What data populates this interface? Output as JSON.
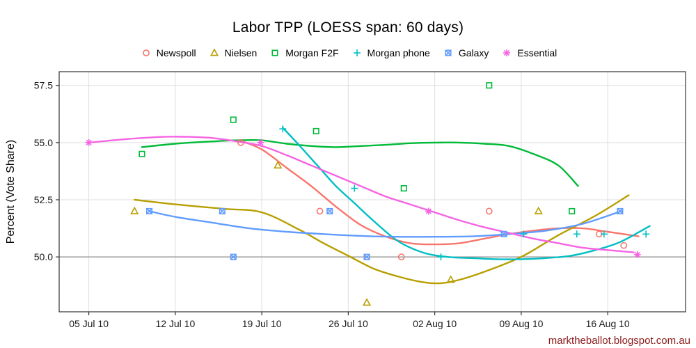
{
  "page": {
    "watermark": "marktheballot.blogspot.com.au"
  },
  "colors": {
    "grid": "#DEDEDE",
    "panel_border": "#333333",
    "panel_background": "#FFFFFF",
    "reference_line": "#8C8C8C",
    "tick_color": "#333333",
    "watermark": "#8B1A1A"
  },
  "chart_data": {
    "type": "scatter",
    "title": "Labor TPP (LOESS span: 60 days)",
    "xlabel": "",
    "ylabel": "Percent (Vote Share)",
    "x_unit_note": "x values are days since 05 Jul 2010",
    "loess_span_days": 60,
    "grid": true,
    "legend_position": "top",
    "xlim": [
      -2.4,
      48.3
    ],
    "ylim": [
      47.6,
      58.1
    ],
    "reference_line_y": 50.0,
    "x_ticks": [
      {
        "value": 0,
        "label": "05 Jul 10"
      },
      {
        "value": 7,
        "label": "12 Jul 10"
      },
      {
        "value": 14,
        "label": "19 Jul 10"
      },
      {
        "value": 21,
        "label": "26 Jul 10"
      },
      {
        "value": 28,
        "label": "02 Aug 10"
      },
      {
        "value": 35,
        "label": "09 Aug 10"
      },
      {
        "value": 42,
        "label": "16 Aug 10"
      }
    ],
    "y_ticks": [
      {
        "value": 50.0,
        "label": "50.0"
      },
      {
        "value": 52.5,
        "label": "52.5"
      },
      {
        "value": 55.0,
        "label": "55.0"
      },
      {
        "value": 57.5,
        "label": "57.5"
      }
    ],
    "series": [
      {
        "name": "Newspoll",
        "color": "#F8766D",
        "shape": "circle-open",
        "points": [
          [
            12.3,
            55.0
          ],
          [
            18.7,
            52.0
          ],
          [
            25.3,
            50.0
          ],
          [
            32.4,
            52.0
          ],
          [
            41.3,
            51.0
          ],
          [
            43.3,
            50.5
          ]
        ],
        "loess": [
          [
            12.2,
            55.1
          ],
          [
            14,
            54.7
          ],
          [
            16,
            53.9
          ],
          [
            18,
            53.1
          ],
          [
            20,
            52.2
          ],
          [
            22,
            51.4
          ],
          [
            24,
            50.9
          ],
          [
            26,
            50.6
          ],
          [
            28,
            50.55
          ],
          [
            30,
            50.6
          ],
          [
            32,
            50.8
          ],
          [
            34,
            51.0
          ],
          [
            36,
            51.15
          ],
          [
            38,
            51.25
          ],
          [
            40,
            51.25
          ],
          [
            42,
            51.1
          ],
          [
            44.5,
            50.9
          ]
        ]
      },
      {
        "name": "Nielsen",
        "color": "#B79F00",
        "shape": "triangle-open",
        "points": [
          [
            3.7,
            52.0
          ],
          [
            15.3,
            54.0
          ],
          [
            22.5,
            48.0
          ],
          [
            29.3,
            49.0
          ],
          [
            36.4,
            52.0
          ]
        ],
        "loess": [
          [
            3.7,
            52.5
          ],
          [
            7,
            52.3
          ],
          [
            11,
            52.1
          ],
          [
            14,
            51.95
          ],
          [
            17,
            51.2
          ],
          [
            19,
            50.6
          ],
          [
            21,
            50.05
          ],
          [
            23,
            49.5
          ],
          [
            25,
            49.15
          ],
          [
            27,
            48.9
          ],
          [
            28.5,
            48.85
          ],
          [
            30,
            49.0
          ],
          [
            32,
            49.35
          ],
          [
            35,
            50.0
          ],
          [
            38,
            50.95
          ],
          [
            41,
            51.8
          ],
          [
            43.7,
            52.7
          ]
        ]
      },
      {
        "name": "Morgan F2F",
        "color": "#00BA38",
        "shape": "square-open",
        "points": [
          [
            4.3,
            54.5
          ],
          [
            11.7,
            56.0
          ],
          [
            18.4,
            55.5
          ],
          [
            25.5,
            53.0
          ],
          [
            32.4,
            57.5
          ],
          [
            39.1,
            52.0
          ]
        ],
        "loess": [
          [
            4.3,
            54.8
          ],
          [
            7,
            54.95
          ],
          [
            10,
            55.05
          ],
          [
            12,
            55.1
          ],
          [
            14,
            55.1
          ],
          [
            16,
            54.95
          ],
          [
            18,
            54.85
          ],
          [
            20,
            54.8
          ],
          [
            22,
            54.85
          ],
          [
            24,
            54.9
          ],
          [
            26,
            54.97
          ],
          [
            28,
            55.0
          ],
          [
            30,
            55.0
          ],
          [
            32,
            54.95
          ],
          [
            34,
            54.85
          ],
          [
            36,
            54.5
          ],
          [
            38,
            54.0
          ],
          [
            39.6,
            53.1
          ]
        ]
      },
      {
        "name": "Morgan phone",
        "color": "#00BFC4",
        "shape": "plus",
        "points": [
          [
            15.7,
            55.6
          ],
          [
            21.5,
            53.0
          ],
          [
            28.5,
            50.0
          ],
          [
            35.2,
            51.0
          ],
          [
            39.5,
            51.0
          ],
          [
            41.7,
            51.0
          ],
          [
            45.1,
            51.0
          ]
        ],
        "loess": [
          [
            15.7,
            55.65
          ],
          [
            17,
            54.9
          ],
          [
            18.5,
            54.0
          ],
          [
            20,
            53.1
          ],
          [
            21.5,
            52.35
          ],
          [
            23,
            51.6
          ],
          [
            25,
            50.7
          ],
          [
            27,
            50.2
          ],
          [
            29,
            50.0
          ],
          [
            31,
            49.95
          ],
          [
            33,
            49.9
          ],
          [
            35,
            49.9
          ],
          [
            37,
            49.95
          ],
          [
            39,
            50.05
          ],
          [
            41,
            50.3
          ],
          [
            43,
            50.65
          ],
          [
            45.4,
            51.35
          ]
        ]
      },
      {
        "name": "Galaxy",
        "color": "#619CFF",
        "shape": "square-x",
        "points": [
          [
            4.9,
            52.0
          ],
          [
            10.8,
            52.0
          ],
          [
            11.7,
            50.0
          ],
          [
            19.5,
            52.0
          ],
          [
            22.5,
            50.0
          ],
          [
            33.6,
            51.0
          ],
          [
            43.0,
            52.0
          ]
        ],
        "loess": [
          [
            4.9,
            52.0
          ],
          [
            7,
            51.75
          ],
          [
            10,
            51.5
          ],
          [
            13,
            51.25
          ],
          [
            16,
            51.1
          ],
          [
            19,
            51.0
          ],
          [
            22,
            50.92
          ],
          [
            25,
            50.88
          ],
          [
            28,
            50.88
          ],
          [
            31,
            50.9
          ],
          [
            34,
            51.0
          ],
          [
            37,
            51.15
          ],
          [
            40,
            51.45
          ],
          [
            43.1,
            52.0
          ]
        ]
      },
      {
        "name": "Essential",
        "color": "#F564E3",
        "shape": "asterisk",
        "points": [
          [
            0,
            55.0
          ],
          [
            13.9,
            55.0
          ],
          [
            27.5,
            52.0
          ],
          [
            44.4,
            50.1
          ]
        ],
        "loess": [
          [
            0,
            55.0
          ],
          [
            3,
            55.15
          ],
          [
            6,
            55.25
          ],
          [
            8,
            55.25
          ],
          [
            10,
            55.2
          ],
          [
            12,
            55.05
          ],
          [
            14,
            54.85
          ],
          [
            16,
            54.45
          ],
          [
            18,
            54.0
          ],
          [
            20,
            53.55
          ],
          [
            22,
            53.1
          ],
          [
            24,
            52.65
          ],
          [
            26,
            52.3
          ],
          [
            28,
            51.95
          ],
          [
            30,
            51.6
          ],
          [
            32,
            51.3
          ],
          [
            34,
            51.05
          ],
          [
            36,
            50.8
          ],
          [
            38,
            50.6
          ],
          [
            40,
            50.4
          ],
          [
            42,
            50.3
          ],
          [
            44.1,
            50.2
          ]
        ]
      }
    ]
  }
}
